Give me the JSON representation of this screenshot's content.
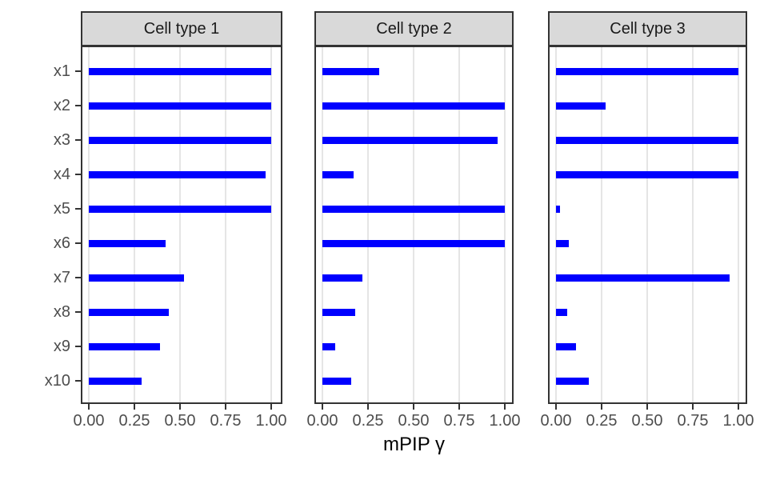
{
  "chart_data": {
    "type": "bar",
    "orientation": "horizontal",
    "title": "",
    "xlabel": "mPIP γ",
    "ylabel": "",
    "categories": [
      "x1",
      "x2",
      "x3",
      "x4",
      "x5",
      "x6",
      "x7",
      "x8",
      "x9",
      "x10"
    ],
    "x_tick_labels": [
      "0.00",
      "0.25",
      "0.50",
      "0.75",
      "1.00"
    ],
    "x_tick_values": [
      0,
      0.25,
      0.5,
      0.75,
      1
    ],
    "xlim": [
      0,
      1
    ],
    "legend_position": "none",
    "grid": "vertical-major-only",
    "facets": [
      {
        "label": "Cell type 1",
        "values": [
          1.0,
          1.0,
          1.0,
          0.97,
          1.0,
          0.42,
          0.52,
          0.44,
          0.39,
          0.29
        ]
      },
      {
        "label": "Cell type 2",
        "values": [
          0.31,
          1.0,
          0.96,
          0.17,
          1.0,
          1.0,
          0.22,
          0.18,
          0.07,
          0.16
        ]
      },
      {
        "label": "Cell type 3",
        "values": [
          1.0,
          0.27,
          1.0,
          1.0,
          0.02,
          0.07,
          0.95,
          0.06,
          0.11,
          0.18
        ]
      }
    ],
    "colors": {
      "bar": "#0000FF",
      "strip_background": "#D9D9D9",
      "panel_border": "#333333",
      "gridline": "#E5E5E5",
      "tick_mark": "#333333",
      "tick_text": "#4D4D4D",
      "axis_title_text": "#000000",
      "background": "#FFFFFF"
    }
  }
}
